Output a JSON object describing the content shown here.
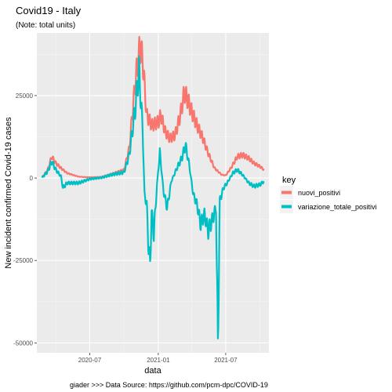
{
  "chart_data": {
    "type": "line",
    "title": "Covid19 - Italy",
    "subtitle": "(Note: total units)",
    "xlabel": "data",
    "ylabel": "New incident confirmed Covid-19 cases",
    "caption": "giader >>> Data Source: https://github.com/pcm-dpc/COVID-19",
    "x_ticks": [
      "2020-07",
      "2021-01",
      "2021-07"
    ],
    "y_ticks": [
      -50000,
      -25000,
      0,
      25000
    ],
    "y_tick_labels": [
      "-50000",
      "-25000",
      "0",
      "25000"
    ],
    "xlim": [
      "2020-02-10",
      "2021-10-25"
    ],
    "ylim": [
      -53000,
      44000
    ],
    "grid": true,
    "legend": {
      "title": "key",
      "placement": "right"
    },
    "series": [
      {
        "name": "nuovi_positivi",
        "color": "#F8766D",
        "points": [
          [
            "2020-02-24",
            200
          ],
          [
            "2020-03-10",
            2500
          ],
          [
            "2020-03-21",
            6500
          ],
          [
            "2020-04-01",
            4500
          ],
          [
            "2020-04-15",
            3000
          ],
          [
            "2020-05-01",
            1500
          ],
          [
            "2020-06-01",
            400
          ],
          [
            "2020-07-01",
            200
          ],
          [
            "2020-08-01",
            350
          ],
          [
            "2020-09-01",
            1400
          ],
          [
            "2020-10-01",
            2500
          ],
          [
            "2020-10-15",
            9000
          ],
          [
            "2020-11-01",
            30000
          ],
          [
            "2020-11-13",
            40000
          ],
          [
            "2020-11-20",
            36000
          ],
          [
            "2020-12-01",
            19000
          ],
          [
            "2020-12-15",
            16000
          ],
          [
            "2021-01-01",
            17000
          ],
          [
            "2021-01-08",
            19000
          ],
          [
            "2021-01-20",
            14000
          ],
          [
            "2021-02-01",
            12000
          ],
          [
            "2021-02-15",
            13000
          ],
          [
            "2021-03-01",
            19000
          ],
          [
            "2021-03-12",
            26000
          ],
          [
            "2021-03-20",
            24000
          ],
          [
            "2021-04-01",
            20000
          ],
          [
            "2021-04-15",
            16000
          ],
          [
            "2021-05-01",
            12000
          ],
          [
            "2021-05-15",
            7500
          ],
          [
            "2021-06-01",
            3000
          ],
          [
            "2021-06-20",
            1000
          ],
          [
            "2021-07-01",
            800
          ],
          [
            "2021-07-15",
            3000
          ],
          [
            "2021-08-01",
            6500
          ],
          [
            "2021-08-15",
            7000
          ],
          [
            "2021-09-01",
            6000
          ],
          [
            "2021-09-15",
            4500
          ],
          [
            "2021-10-01",
            3500
          ],
          [
            "2021-10-12",
            2500
          ]
        ]
      },
      {
        "name": "variazione_totale_positivi",
        "color": "#00BFC4",
        "points": [
          [
            "2020-02-24",
            100
          ],
          [
            "2020-03-10",
            2000
          ],
          [
            "2020-03-21",
            5000
          ],
          [
            "2020-04-01",
            2500
          ],
          [
            "2020-04-15",
            500
          ],
          [
            "2020-04-20",
            -3000
          ],
          [
            "2020-05-01",
            -1500
          ],
          [
            "2020-06-01",
            -1500
          ],
          [
            "2020-07-01",
            -300
          ],
          [
            "2020-08-01",
            100
          ],
          [
            "2020-09-01",
            1100
          ],
          [
            "2020-10-01",
            1700
          ],
          [
            "2020-10-15",
            7000
          ],
          [
            "2020-11-01",
            22000
          ],
          [
            "2020-11-10",
            33000
          ],
          [
            "2020-11-20",
            15000
          ],
          [
            "2020-11-25",
            -5000
          ],
          [
            "2020-12-01",
            -8000
          ],
          [
            "2020-12-05",
            -19000
          ],
          [
            "2020-12-10",
            -27000
          ],
          [
            "2020-12-14",
            -10000
          ],
          [
            "2020-12-20",
            -17000
          ],
          [
            "2020-12-28",
            -3000
          ],
          [
            "2021-01-05",
            8000
          ],
          [
            "2021-01-15",
            -4000
          ],
          [
            "2021-01-25",
            -9000
          ],
          [
            "2021-02-05",
            -1000
          ],
          [
            "2021-02-20",
            3000
          ],
          [
            "2021-03-05",
            6000
          ],
          [
            "2021-03-15",
            10000
          ],
          [
            "2021-03-25",
            4000
          ],
          [
            "2021-04-05",
            -5000
          ],
          [
            "2021-04-15",
            -8000
          ],
          [
            "2021-04-25",
            -14000
          ],
          [
            "2021-05-05",
            -11000
          ],
          [
            "2021-05-15",
            -16000
          ],
          [
            "2021-05-25",
            -13000
          ],
          [
            "2021-06-05",
            -9000
          ],
          [
            "2021-06-10",
            -52000
          ],
          [
            "2021-06-15",
            -7000
          ],
          [
            "2021-06-25",
            -3000
          ],
          [
            "2021-07-05",
            -1500
          ],
          [
            "2021-07-20",
            1500
          ],
          [
            "2021-08-01",
            2500
          ],
          [
            "2021-08-15",
            1000
          ],
          [
            "2021-09-01",
            -1500
          ],
          [
            "2021-09-15",
            -2500
          ],
          [
            "2021-10-01",
            -2000
          ],
          [
            "2021-10-12",
            -1000
          ]
        ]
      }
    ]
  }
}
